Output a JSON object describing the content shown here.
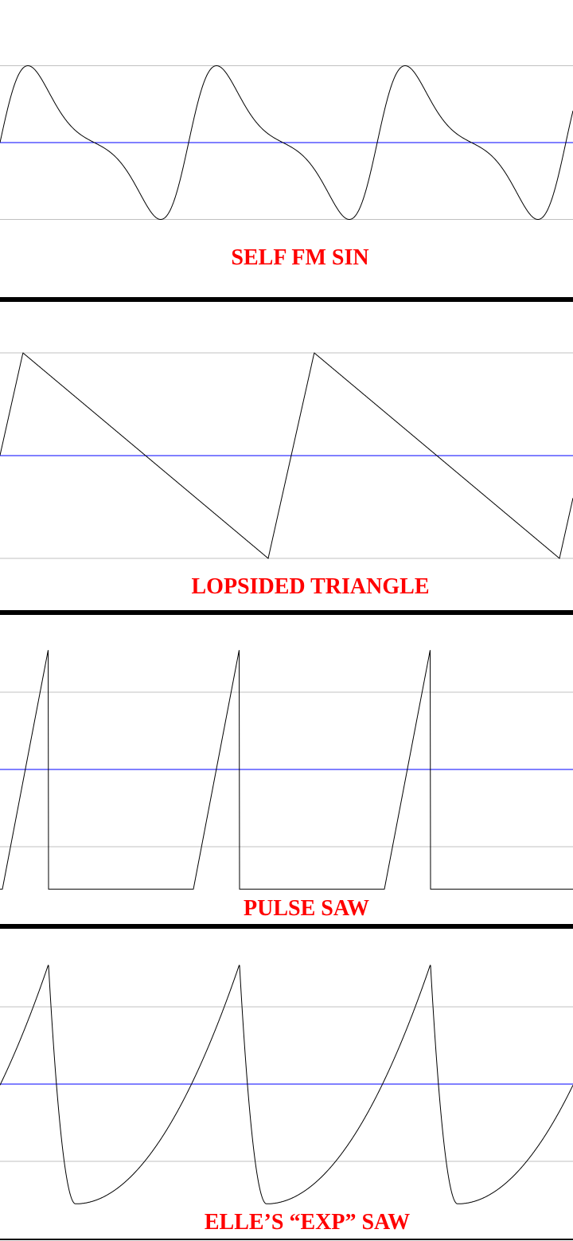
{
  "colors": {
    "title": "#ff0000",
    "wave": "#000000",
    "center_line": "#0000ff",
    "grid": "#c0c0c0",
    "separator": "#000000"
  },
  "chart_data": [
    {
      "type": "line",
      "title": "SELF FM SIN",
      "waveform": "self_fm_sine",
      "fm_index": 0.8,
      "cycles_visible": 3.04,
      "ylim": [
        -1,
        1
      ],
      "gridlines": [
        -1,
        0,
        1
      ],
      "y_min": -1,
      "y_max": 1
    },
    {
      "type": "line",
      "title": "LOPSIDED TRIANGLE",
      "waveform": "lopsided_triangle",
      "rise_fraction": 0.158,
      "cycles_visible": 1.97,
      "ylim": [
        -1,
        1
      ],
      "gridlines": [
        -1,
        0,
        1
      ],
      "y_min": -1,
      "y_max": 1
    },
    {
      "type": "line",
      "title": "PULSE SAW",
      "waveform": "pulse_saw",
      "rise_fraction": 0.24,
      "cycles_visible": 3,
      "ylim": [
        -1.55,
        1.55
      ],
      "gridlines": [
        -1,
        0,
        1
      ],
      "y_min": -1.55,
      "y_max": 1.55
    },
    {
      "type": "line",
      "title": "ELLE’S “EXP” SAW",
      "waveform": "exp_saw",
      "fall_fraction": 0.142,
      "cycles_visible": 3,
      "ylim": [
        -1.55,
        1.55
      ],
      "gridlines": [
        -1,
        0,
        1
      ],
      "y_min": -1.55,
      "y_max": 1.55
    }
  ]
}
